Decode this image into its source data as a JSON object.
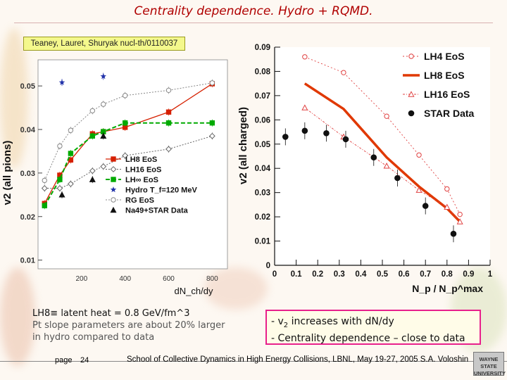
{
  "title": "Centrality dependence. Hydro + RQMD.",
  "reference": "Teaney, Lauret, Shuryak nucl-th/0110037",
  "note": {
    "line1": "LH8≡ latent heat = 0.8 GeV/fm^3",
    "line2": "Pt slope parameters are about 20% larger",
    "line3": "in hydro compared to data"
  },
  "callout": {
    "line1_pre": "- v",
    "line1_sub": "2",
    "line1_post": " increases with dN/dy",
    "line2": "- Centrality dependence – close to data"
  },
  "footer": {
    "page_label": "page",
    "page_number": "24",
    "conference": "School of Collective Dynamics in High Energy Collisions, LBNL, May 19-27, 2005",
    "author": "S.A. Voloshin",
    "logo": "WAYNE STATE UNIVERSITY"
  },
  "colors": {
    "title": "#b00000",
    "lh8": "#d62000",
    "lh16": "#666666",
    "lhinf": "#00aa00",
    "rg": "#888888",
    "hydro_star": "#2233aa",
    "callout_border": "#e8208c"
  },
  "chart_data": [
    {
      "type": "line",
      "title": "",
      "xlabel": "dN_ch/dy",
      "ylabel": "v2 (all pions)",
      "xlim": [
        0,
        870
      ],
      "ylim": [
        0.008,
        0.056
      ],
      "x_ticks": [
        "200",
        "400",
        "600",
        "800"
      ],
      "x_tick_values": [
        200,
        400,
        600,
        800
      ],
      "y_ticks": [
        "0.01",
        "0.02",
        "0.03",
        "0.04",
        "0.05"
      ],
      "y_tick_values": [
        0.01,
        0.02,
        0.03,
        0.04,
        0.05
      ],
      "legend_position": "bottom-right",
      "series": [
        {
          "name": "LH8 EoS",
          "style": "red-solid-square",
          "x": [
            30,
            100,
            150,
            250,
            300,
            400,
            600,
            800
          ],
          "y": [
            0.023,
            0.0295,
            0.033,
            0.039,
            0.0395,
            0.0405,
            0.044,
            0.0505
          ]
        },
        {
          "name": "LH16 EoS",
          "style": "gray-dotted-diamond",
          "x": [
            30,
            100,
            150,
            250,
            300,
            400,
            600,
            800
          ],
          "y": [
            0.0265,
            0.0265,
            0.0275,
            0.0305,
            0.0315,
            0.034,
            0.0355,
            0.0385
          ]
        },
        {
          "name": "LH∞ EoS",
          "style": "green-dashed-square",
          "x": [
            30,
            100,
            150,
            250,
            300,
            400,
            600,
            800
          ],
          "y": [
            0.0225,
            0.0285,
            0.0345,
            0.0385,
            0.0395,
            0.0415,
            0.0415,
            0.0415
          ]
        },
        {
          "name": "Hydro T_f=120 MeV",
          "style": "blue-star",
          "x": [
            110,
            300
          ],
          "y": [
            0.0508,
            0.0522
          ]
        },
        {
          "name": "RG EoS",
          "style": "gray-dotted-open-circle",
          "x": [
            30,
            100,
            150,
            250,
            300,
            400,
            600,
            800
          ],
          "y": [
            0.0283,
            0.0362,
            0.0398,
            0.0443,
            0.0458,
            0.0478,
            0.049,
            0.0507
          ]
        },
        {
          "name": "Na49+STAR Data",
          "style": "black-triangle",
          "x": [
            110,
            250,
            300
          ],
          "y": [
            0.025,
            0.0285,
            0.0385
          ]
        }
      ],
      "legend": [
        "LH8 EoS",
        "LH16 EoS",
        "LH∞ EoS",
        "Hydro T_f=120 MeV",
        "RG EoS",
        "Na49+STAR Data"
      ]
    },
    {
      "type": "line",
      "title": "",
      "xlabel": "N_p / N_p^max",
      "ylabel": "v2 (all charged)",
      "xlim": [
        0,
        1
      ],
      "ylim": [
        0,
        0.09
      ],
      "x_ticks": [
        "0",
        "0.1",
        "0.2",
        "0.3",
        "0.4",
        "0.5",
        "0.6",
        "0.7",
        "0.8",
        "0.9",
        "1"
      ],
      "x_tick_values": [
        0,
        0.1,
        0.2,
        0.3,
        0.4,
        0.5,
        0.6,
        0.7,
        0.8,
        0.9,
        1
      ],
      "y_ticks": [
        "0",
        "0.01",
        "0.02",
        "0.03",
        "0.04",
        "0.05",
        "0.06",
        "0.07",
        "0.08",
        "0.09"
      ],
      "y_tick_values": [
        0,
        0.01,
        0.02,
        0.03,
        0.04,
        0.05,
        0.06,
        0.07,
        0.08,
        0.09
      ],
      "legend_position": "top-right",
      "series": [
        {
          "name": "LH4 EoS",
          "style": "red-dotted-circle",
          "x": [
            0.14,
            0.32,
            0.52,
            0.67,
            0.8,
            0.86
          ],
          "y": [
            0.086,
            0.0795,
            0.0615,
            0.0455,
            0.0315,
            0.021
          ]
        },
        {
          "name": "LH8 EoS",
          "style": "red-thick",
          "x": [
            0.14,
            0.32,
            0.52,
            0.67,
            0.8,
            0.86
          ],
          "y": [
            0.075,
            0.0645,
            0.0445,
            0.0325,
            0.0235,
            0.018
          ]
        },
        {
          "name": "LH16 EoS",
          "style": "red-dotted-triangle",
          "x": [
            0.14,
            0.32,
            0.52,
            0.67,
            0.8,
            0.86
          ],
          "y": [
            0.065,
            0.053,
            0.041,
            0.031,
            0.024,
            0.018
          ]
        },
        {
          "name": "STAR Data",
          "style": "black-dot",
          "x": [
            0.05,
            0.14,
            0.24,
            0.33,
            0.46,
            0.57,
            0.7,
            0.83
          ],
          "y": [
            0.053,
            0.0555,
            0.0545,
            0.052,
            0.0445,
            0.036,
            0.0245,
            0.013
          ]
        }
      ],
      "legend": [
        "LH4 EoS",
        "LH8 EoS",
        "LH16 EoS",
        "STAR Data"
      ]
    }
  ]
}
